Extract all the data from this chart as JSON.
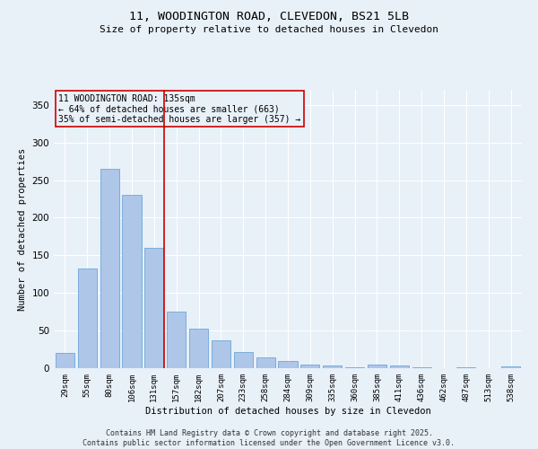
{
  "title": "11, WOODINGTON ROAD, CLEVEDON, BS21 5LB",
  "subtitle": "Size of property relative to detached houses in Clevedon",
  "xlabel": "Distribution of detached houses by size in Clevedon",
  "ylabel": "Number of detached properties",
  "bar_color": "#aec6e8",
  "bar_edge_color": "#5b9bd5",
  "categories": [
    "29sqm",
    "55sqm",
    "80sqm",
    "106sqm",
    "131sqm",
    "157sqm",
    "182sqm",
    "207sqm",
    "233sqm",
    "258sqm",
    "284sqm",
    "309sqm",
    "335sqm",
    "360sqm",
    "385sqm",
    "411sqm",
    "436sqm",
    "462sqm",
    "487sqm",
    "513sqm",
    "538sqm"
  ],
  "values": [
    20,
    133,
    265,
    230,
    160,
    75,
    53,
    37,
    22,
    14,
    9,
    5,
    4,
    1,
    5,
    3,
    1,
    0,
    1,
    0,
    2
  ],
  "vline_x_idx": 4,
  "vline_color": "#cc0000",
  "annotation_text": "11 WOODINGTON ROAD: 135sqm\n← 64% of detached houses are smaller (663)\n35% of semi-detached houses are larger (357) →",
  "annotation_box_color": "#cc0000",
  "ylim": [
    0,
    370
  ],
  "yticks": [
    0,
    50,
    100,
    150,
    200,
    250,
    300,
    350
  ],
  "background_color": "#e8f0f8",
  "grid_color": "#ffffff",
  "footer1": "Contains HM Land Registry data © Crown copyright and database right 2025.",
  "footer2": "Contains public sector information licensed under the Open Government Licence v3.0."
}
